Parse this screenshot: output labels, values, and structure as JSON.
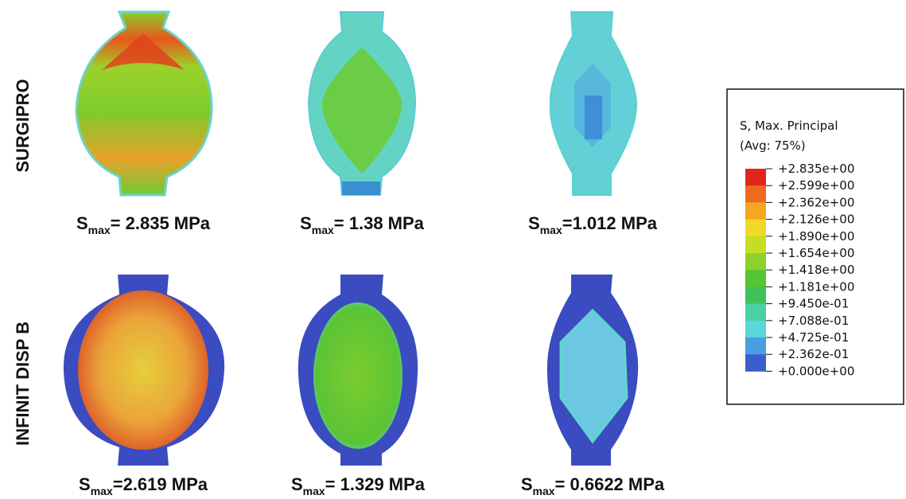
{
  "rows": [
    {
      "label": "SURGIPRO",
      "panels": [
        {
          "symbol": "S",
          "subscript": "max",
          "text": "= 2.835 MPa"
        },
        {
          "symbol": "S",
          "subscript": "max",
          "text": "= 1.38 MPa"
        },
        {
          "symbol": "S",
          "subscript": "max",
          "text": "=1.012 MPa"
        }
      ]
    },
    {
      "label": "INFINIT DISP B",
      "panels": [
        {
          "symbol": "S",
          "subscript": "max",
          "text": "=2.619 MPa"
        },
        {
          "symbol": "S",
          "subscript": "max",
          "text": "= 1.329 MPa"
        },
        {
          "symbol": "S",
          "subscript": "max",
          "text": "= 0.6622 MPa"
        }
      ]
    }
  ],
  "legend": {
    "title": [
      "S, Max. Principal",
      "(Avg: 75%)"
    ],
    "levels": [
      "+2.835e+00",
      "+2.599e+00",
      "+2.362e+00",
      "+2.126e+00",
      "+1.890e+00",
      "+1.654e+00",
      "+1.418e+00",
      "+1.181e+00",
      "+9.450e-01",
      "+7.088e-01",
      "+4.725e-01",
      "+2.362e-01",
      "+0.000e+00"
    ],
    "colors": [
      "#e0261b",
      "#ee6a1d",
      "#f5a623",
      "#f2d928",
      "#c6dd24",
      "#8ed12b",
      "#55c530",
      "#3fc25a",
      "#4ad0a4",
      "#5cd6d6",
      "#4a9fe0",
      "#3a5fcc"
    ]
  }
}
